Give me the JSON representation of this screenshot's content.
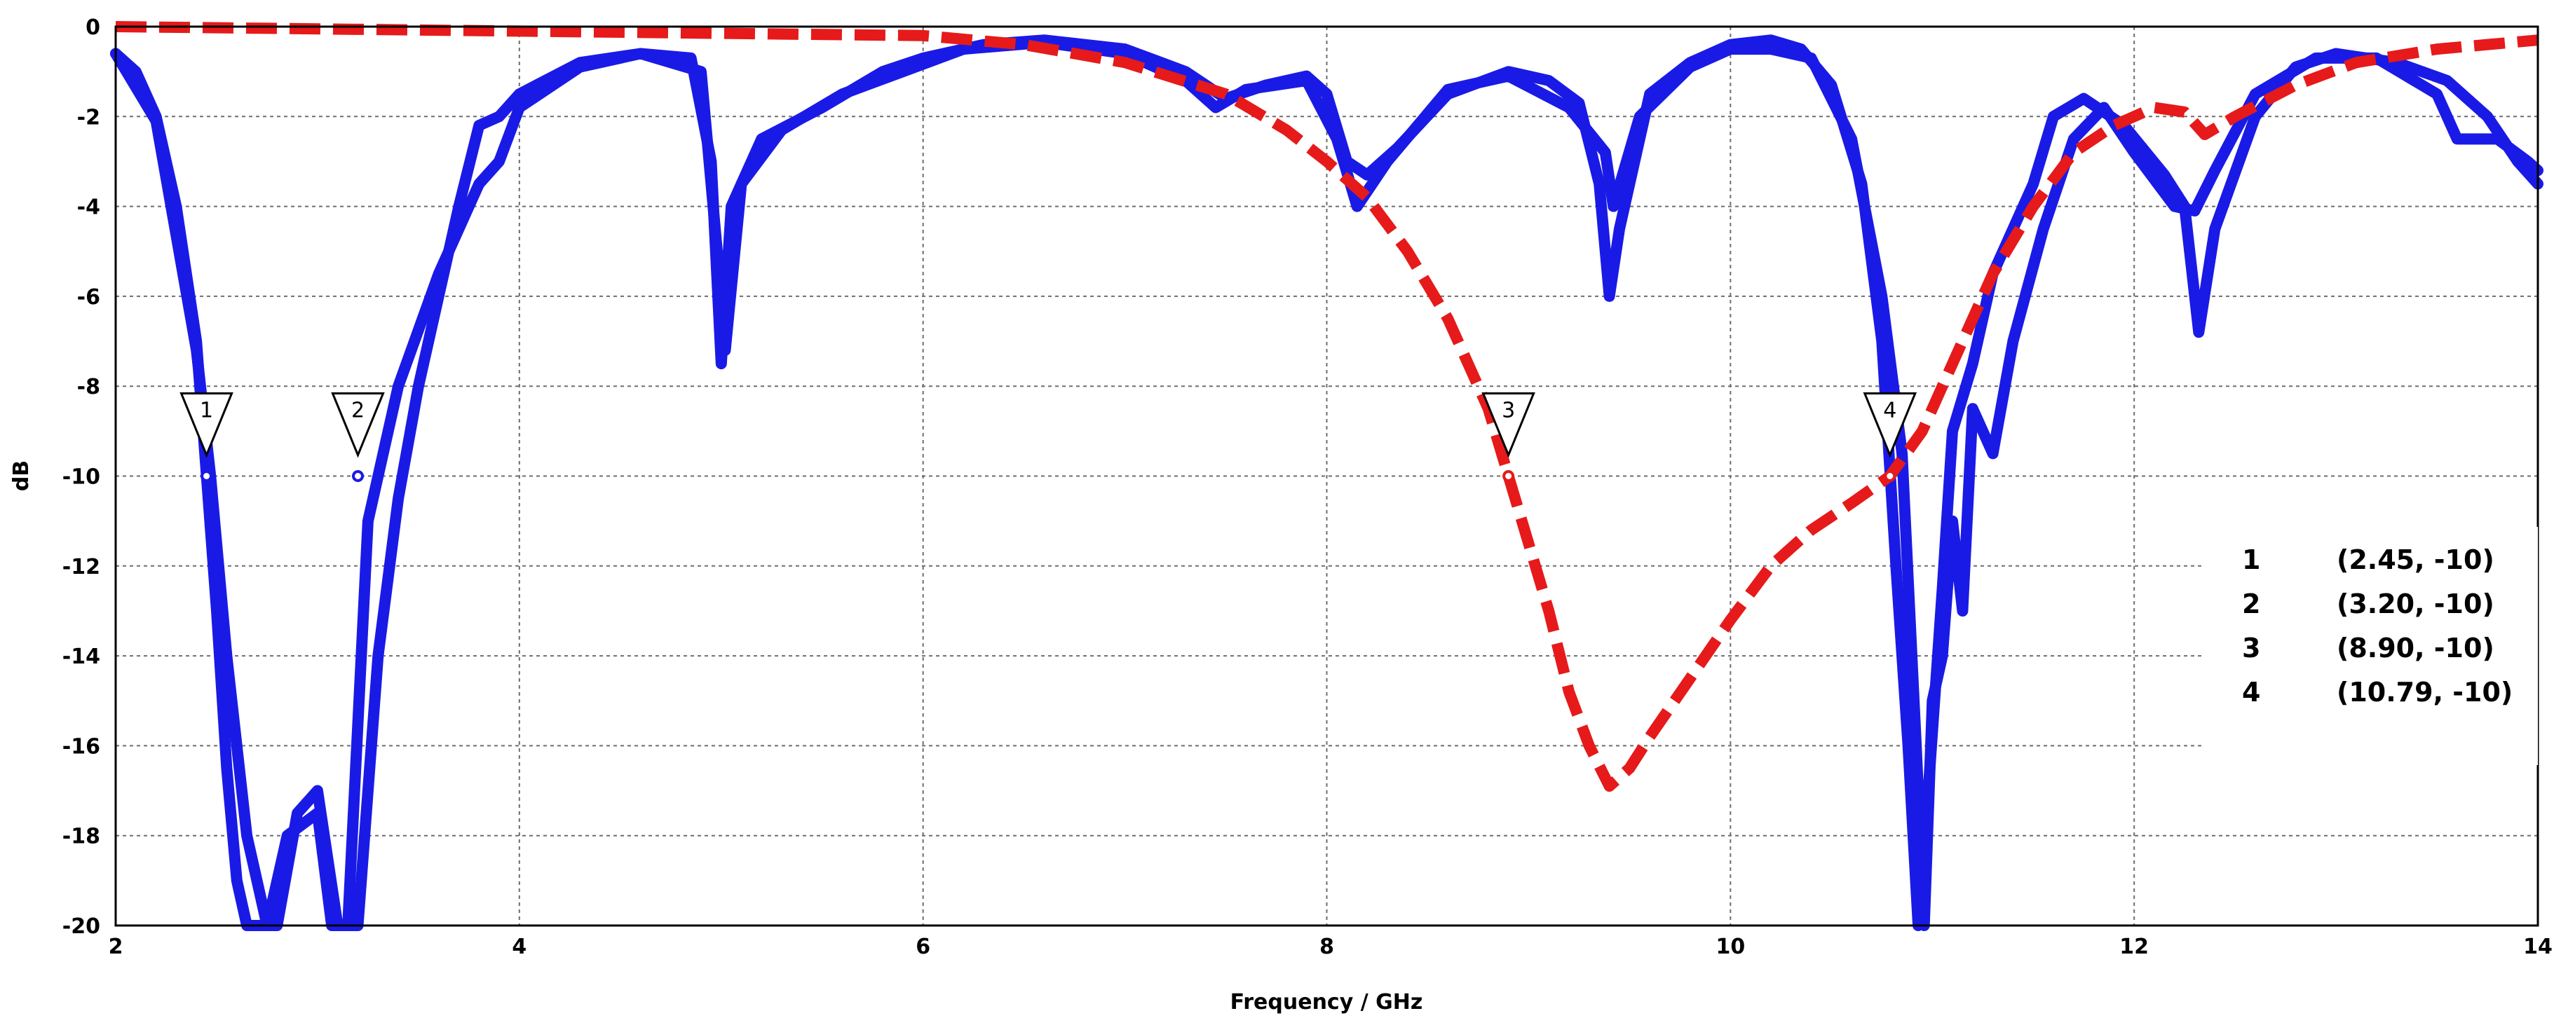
{
  "chart_data": {
    "type": "line",
    "xlabel": "Frequency / GHz",
    "ylabel": "dB",
    "xlim": [
      2,
      14
    ],
    "ylim": [
      -20,
      0
    ],
    "x_ticks": [
      2,
      4,
      6,
      8,
      10,
      12,
      14
    ],
    "y_ticks": [
      0,
      -2,
      -4,
      -6,
      -8,
      -10,
      -12,
      -14,
      -16,
      -18,
      -20
    ],
    "grid": true,
    "series": [
      {
        "color": "#1a1ae6",
        "style": "solid",
        "points": [
          [
            2.0,
            -0.6
          ],
          [
            2.1,
            -1.0
          ],
          [
            2.2,
            -2.0
          ],
          [
            2.3,
            -4.0
          ],
          [
            2.4,
            -7.0
          ],
          [
            2.45,
            -10.0
          ],
          [
            2.5,
            -13.0
          ],
          [
            2.55,
            -16.5
          ],
          [
            2.6,
            -19.0
          ],
          [
            2.65,
            -20.0
          ],
          [
            2.8,
            -20.0
          ],
          [
            2.9,
            -17.5
          ],
          [
            3.0,
            -17.0
          ],
          [
            3.05,
            -18.5
          ],
          [
            3.1,
            -20.0
          ],
          [
            3.2,
            -20.0
          ],
          [
            3.3,
            -14.0
          ],
          [
            3.4,
            -10.5
          ],
          [
            3.5,
            -8.0
          ],
          [
            3.6,
            -6.0
          ],
          [
            3.7,
            -4.0
          ],
          [
            3.8,
            -2.2
          ],
          [
            3.9,
            -2.0
          ],
          [
            4.0,
            -1.5
          ],
          [
            4.3,
            -0.8
          ],
          [
            4.6,
            -0.6
          ],
          [
            4.85,
            -0.7
          ],
          [
            4.95,
            -3.0
          ],
          [
            5.0,
            -7.5
          ],
          [
            5.05,
            -4.0
          ],
          [
            5.2,
            -2.5
          ],
          [
            5.5,
            -1.8
          ],
          [
            5.8,
            -1.0
          ],
          [
            6.0,
            -0.7
          ],
          [
            6.3,
            -0.4
          ],
          [
            6.6,
            -0.3
          ],
          [
            7.0,
            -0.5
          ],
          [
            7.3,
            -1.0
          ],
          [
            7.5,
            -1.6
          ],
          [
            7.7,
            -1.3
          ],
          [
            7.9,
            -1.1
          ],
          [
            8.0,
            -1.5
          ],
          [
            8.1,
            -3.0
          ],
          [
            8.2,
            -3.3
          ],
          [
            8.35,
            -2.7
          ],
          [
            8.6,
            -1.5
          ],
          [
            8.9,
            -1.0
          ],
          [
            9.1,
            -1.2
          ],
          [
            9.25,
            -1.7
          ],
          [
            9.35,
            -3.5
          ],
          [
            9.4,
            -6.0
          ],
          [
            9.45,
            -4.5
          ],
          [
            9.6,
            -1.5
          ],
          [
            9.8,
            -0.8
          ],
          [
            10.0,
            -0.4
          ],
          [
            10.2,
            -0.3
          ],
          [
            10.35,
            -0.5
          ],
          [
            10.5,
            -1.3
          ],
          [
            10.65,
            -3.5
          ],
          [
            10.75,
            -7.0
          ],
          [
            10.82,
            -12.0
          ],
          [
            10.88,
            -16.0
          ],
          [
            10.93,
            -20.0
          ],
          [
            10.98,
            -17.0
          ],
          [
            11.05,
            -12.5
          ],
          [
            11.1,
            -9.0
          ],
          [
            11.2,
            -7.5
          ],
          [
            11.3,
            -5.5
          ],
          [
            11.4,
            -4.5
          ],
          [
            11.5,
            -3.5
          ],
          [
            11.6,
            -2.0
          ],
          [
            11.75,
            -1.6
          ],
          [
            11.95,
            -2.2
          ],
          [
            12.15,
            -3.3
          ],
          [
            12.25,
            -4.0
          ],
          [
            12.32,
            -6.8
          ],
          [
            12.4,
            -4.5
          ],
          [
            12.6,
            -2.0
          ],
          [
            12.8,
            -0.9
          ],
          [
            13.0,
            -0.6
          ],
          [
            13.3,
            -0.8
          ],
          [
            13.55,
            -1.2
          ],
          [
            13.75,
            -2.0
          ],
          [
            13.9,
            -3.0
          ],
          [
            14.0,
            -3.5
          ]
        ]
      },
      {
        "color": "#1a1ae6",
        "style": "solid",
        "points": [
          [
            2.0,
            -0.6
          ],
          [
            2.2,
            -2.1
          ],
          [
            2.4,
            -7.2
          ],
          [
            2.47,
            -10.0
          ],
          [
            2.55,
            -14.0
          ],
          [
            2.65,
            -18.0
          ],
          [
            2.75,
            -20.0
          ],
          [
            2.85,
            -18.0
          ],
          [
            3.0,
            -17.5
          ],
          [
            3.07,
            -20.0
          ],
          [
            3.15,
            -20.0
          ],
          [
            3.25,
            -11.0
          ],
          [
            3.4,
            -8.0
          ],
          [
            3.6,
            -5.5
          ],
          [
            3.8,
            -3.5
          ],
          [
            3.9,
            -3.0
          ],
          [
            4.0,
            -1.8
          ],
          [
            4.3,
            -0.9
          ],
          [
            4.6,
            -0.6
          ],
          [
            4.9,
            -1.0
          ],
          [
            4.98,
            -5.0
          ],
          [
            5.02,
            -7.2
          ],
          [
            5.1,
            -3.5
          ],
          [
            5.3,
            -2.3
          ],
          [
            5.6,
            -1.5
          ],
          [
            5.9,
            -1.0
          ],
          [
            6.2,
            -0.5
          ],
          [
            6.6,
            -0.35
          ],
          [
            7.0,
            -0.6
          ],
          [
            7.3,
            -1.2
          ],
          [
            7.45,
            -1.8
          ],
          [
            7.6,
            -1.4
          ],
          [
            7.9,
            -1.2
          ],
          [
            8.05,
            -2.5
          ],
          [
            8.15,
            -4.0
          ],
          [
            8.3,
            -3.0
          ],
          [
            8.6,
            -1.4
          ],
          [
            8.9,
            -1.1
          ],
          [
            9.2,
            -1.8
          ],
          [
            9.38,
            -2.8
          ],
          [
            9.42,
            -4.0
          ],
          [
            9.55,
            -2.0
          ],
          [
            9.8,
            -0.9
          ],
          [
            10.0,
            -0.5
          ],
          [
            10.2,
            -0.5
          ],
          [
            10.4,
            -0.7
          ],
          [
            10.6,
            -2.5
          ],
          [
            10.75,
            -6.0
          ],
          [
            10.85,
            -9.5
          ],
          [
            10.92,
            -16.0
          ],
          [
            10.96,
            -20.0
          ],
          [
            11.0,
            -15.0
          ],
          [
            11.05,
            -14.0
          ],
          [
            11.1,
            -11.0
          ],
          [
            11.15,
            -13.0
          ],
          [
            11.2,
            -8.5
          ],
          [
            11.3,
            -9.5
          ],
          [
            11.4,
            -7.0
          ],
          [
            11.55,
            -4.5
          ],
          [
            11.7,
            -2.5
          ],
          [
            11.85,
            -1.8
          ],
          [
            12.0,
            -2.8
          ],
          [
            12.2,
            -4.0
          ],
          [
            12.3,
            -4.1
          ],
          [
            12.4,
            -3.2
          ],
          [
            12.6,
            -1.5
          ],
          [
            12.9,
            -0.7
          ],
          [
            13.2,
            -0.7
          ],
          [
            13.5,
            -1.5
          ],
          [
            13.6,
            -2.5
          ],
          [
            13.8,
            -2.5
          ],
          [
            13.95,
            -3.0
          ],
          [
            14.0,
            -3.2
          ]
        ]
      },
      {
        "color": "#e61a1a",
        "style": "dashed",
        "points": [
          [
            2.0,
            0.0
          ],
          [
            4.0,
            -0.1
          ],
          [
            6.0,
            -0.2
          ],
          [
            6.5,
            -0.4
          ],
          [
            7.0,
            -0.8
          ],
          [
            7.5,
            -1.5
          ],
          [
            7.8,
            -2.3
          ],
          [
            8.0,
            -3.0
          ],
          [
            8.2,
            -3.8
          ],
          [
            8.4,
            -5.0
          ],
          [
            8.6,
            -6.5
          ],
          [
            8.8,
            -8.5
          ],
          [
            8.9,
            -10.0
          ],
          [
            9.0,
            -11.5
          ],
          [
            9.1,
            -13.0
          ],
          [
            9.2,
            -14.8
          ],
          [
            9.3,
            -16.0
          ],
          [
            9.4,
            -16.9
          ],
          [
            9.5,
            -16.5
          ],
          [
            9.6,
            -15.8
          ],
          [
            9.8,
            -14.5
          ],
          [
            10.0,
            -13.2
          ],
          [
            10.2,
            -12.0
          ],
          [
            10.4,
            -11.2
          ],
          [
            10.6,
            -10.6
          ],
          [
            10.79,
            -10.0
          ],
          [
            10.95,
            -9.0
          ],
          [
            11.1,
            -7.5
          ],
          [
            11.3,
            -5.5
          ],
          [
            11.5,
            -4.0
          ],
          [
            11.7,
            -2.8
          ],
          [
            11.9,
            -2.2
          ],
          [
            12.1,
            -1.8
          ],
          [
            12.25,
            -1.9
          ],
          [
            12.35,
            -2.4
          ],
          [
            12.5,
            -2.0
          ],
          [
            12.8,
            -1.3
          ],
          [
            13.1,
            -0.8
          ],
          [
            13.5,
            -0.5
          ],
          [
            14.0,
            -0.3
          ]
        ]
      }
    ],
    "markers": [
      {
        "id": "1",
        "x": 2.45,
        "y": -10,
        "color": "#1a1ae6"
      },
      {
        "id": "2",
        "x": 3.2,
        "y": -10,
        "color": "#1a1ae6"
      },
      {
        "id": "3",
        "x": 8.9,
        "y": -10,
        "color": "#e61a1a"
      },
      {
        "id": "4",
        "x": 10.79,
        "y": -10,
        "color": "#e61a1a"
      }
    ],
    "marker_table": [
      {
        "id": "1",
        "value": "(2.45, -10)"
      },
      {
        "id": "2",
        "value": "(3.20, -10)"
      },
      {
        "id": "3",
        "value": "(8.90, -10)"
      },
      {
        "id": "4",
        "value": "(10.79, -10)"
      }
    ]
  }
}
